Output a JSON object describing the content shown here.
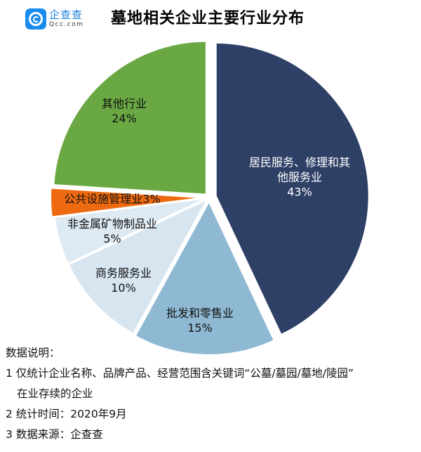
{
  "logo": {
    "cn": "企查查",
    "en": "Qcc.com"
  },
  "title": "墓地相关企业主要行业分布",
  "chart_data": {
    "type": "pie",
    "title": "墓地相关企业主要行业分布",
    "start_angle": "12 o'clock, clockwise",
    "exploded": true,
    "slices": [
      {
        "label": "居民服务、修理和其他服务业",
        "value": 43,
        "display": "43%",
        "color": "#2e4066",
        "text_color": "#ffffff"
      },
      {
        "label": "批发和零售业",
        "value": 15,
        "display": "15%",
        "color": "#8fb9d3",
        "text_color": "#111111"
      },
      {
        "label": "商务服务业",
        "value": 10,
        "display": "10%",
        "color": "#d7e5f1",
        "text_color": "#111111"
      },
      {
        "label": "非金属矿物制品业",
        "value": 5,
        "display": "5%",
        "color": "#dde9f3",
        "text_color": "#111111"
      },
      {
        "label": "公共设施管理业",
        "value": 3,
        "display": "3%",
        "color": "#ee6a10",
        "text_color": "#111111"
      },
      {
        "label": "其他行业",
        "value": 24,
        "display": "24%",
        "color": "#6aa844",
        "text_color": "#111111"
      }
    ]
  },
  "labels": {
    "s0_line1": "居民服务、修理和其",
    "s0_line2": "他服务业",
    "s0_pct": "43%",
    "s1_line1": "批发和零售业",
    "s1_pct": "15%",
    "s2_line1": "商务服务业",
    "s2_pct": "10%",
    "s3_line1": "非金属矿物制品业",
    "s3_pct": "5%",
    "s4_line1": "公共设施管理业3%",
    "s5_line1": "其他行业",
    "s5_pct": "24%"
  },
  "notes": {
    "heading": "数据说明：",
    "line1": "1 仅统计企业名称、品牌产品、经营范围含关键词“公墓/墓园/墓地/陵园”",
    "line1b": "在业存续的企业",
    "line2": "2 统计时间：2020年9月",
    "line3": "3 数据来源：企查查"
  }
}
